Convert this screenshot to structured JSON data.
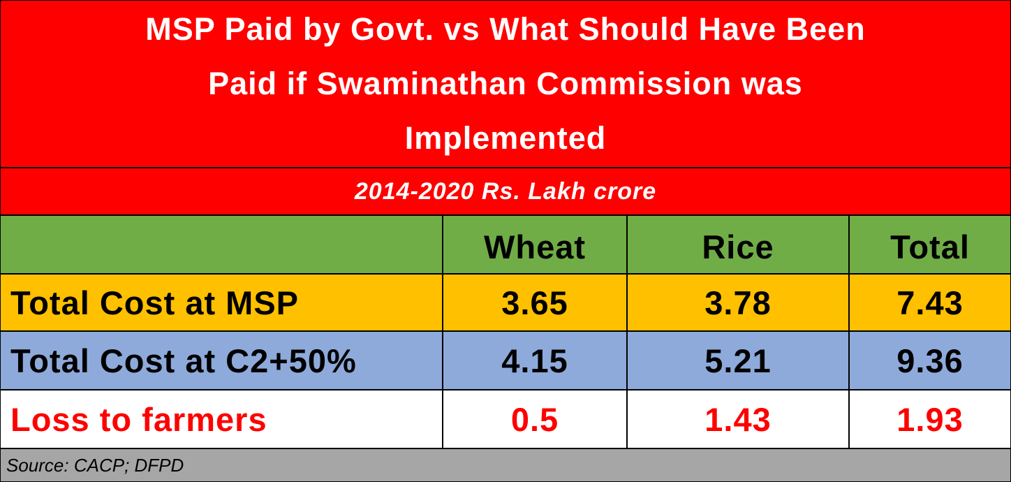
{
  "chart_data": {
    "type": "table",
    "title_lines": [
      "MSP Paid by Govt. vs What Should Have Been",
      "Paid if Swaminathan Commission was",
      "Implemented"
    ],
    "subtitle": "2014-2020 Rs. Lakh crore",
    "columns": [
      "",
      "Wheat",
      "Rice",
      "Total"
    ],
    "rows": [
      {
        "label": "Total Cost at MSP",
        "values": [
          "3.65",
          "3.78",
          "7.43"
        ]
      },
      {
        "label": "Total Cost at C2+50%",
        "values": [
          "4.15",
          "5.21",
          "9.36"
        ]
      },
      {
        "label": "Loss to farmers",
        "values": [
          "0.5",
          "1.43",
          "1.93"
        ]
      }
    ],
    "source": "Source: CACP; DFPD"
  },
  "colors": {
    "title_background": "#ff0000",
    "header_row": "#70ad47",
    "msp_row": "#ffc000",
    "c2_row": "#8eaadb",
    "loss_text": "#ff0000",
    "source_background": "#a6a6a6"
  }
}
